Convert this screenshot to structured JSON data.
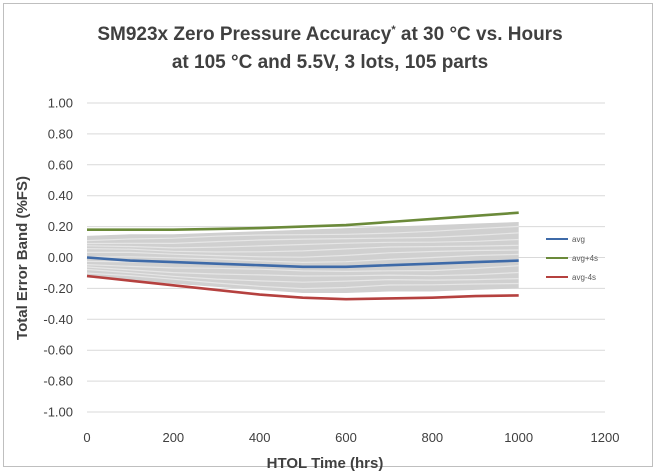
{
  "chart_data": {
    "type": "line",
    "title_line1": "SM923x Zero Pressure Accuracy",
    "title_sup": "*",
    "title_line1_rest": " at 30 °C vs. Hours",
    "title_line2": "at 105 °C and 5.5V, 3 lots, 105 parts",
    "xlabel": "HTOL Time (hrs)",
    "ylabel": "Total Error Band (%FS)",
    "xlim": [
      0,
      1200
    ],
    "ylim": [
      -1.0,
      1.0
    ],
    "x_ticks": [
      "0",
      "200",
      "400",
      "600",
      "800",
      "1000",
      "1200"
    ],
    "y_ticks": [
      "1.00",
      "0.80",
      "0.60",
      "0.40",
      "0.20",
      "0.00",
      "-0.20",
      "-0.40",
      "-0.60",
      "-0.80",
      "-1.00"
    ],
    "grid": true,
    "legend_position": "right",
    "band": {
      "x": [
        0,
        100,
        200,
        300,
        400,
        500,
        600,
        700,
        800,
        900,
        1000
      ],
      "upper": [
        0.14,
        0.15,
        0.15,
        0.16,
        0.17,
        0.18,
        0.19,
        0.2,
        0.21,
        0.22,
        0.23
      ],
      "lower": [
        -0.13,
        -0.15,
        -0.17,
        -0.19,
        -0.21,
        -0.23,
        -0.23,
        -0.22,
        -0.22,
        -0.21,
        -0.2
      ],
      "color": "#d0d0d0"
    },
    "series": [
      {
        "name": "avg",
        "color": "#3e6aa8",
        "x": [
          0,
          100,
          200,
          300,
          400,
          500,
          600,
          700,
          800,
          900,
          1000
        ],
        "y": [
          0.0,
          -0.02,
          -0.03,
          -0.04,
          -0.05,
          -0.06,
          -0.06,
          -0.05,
          -0.04,
          -0.03,
          -0.02
        ]
      },
      {
        "name": "avg+4s",
        "color": "#6b8a3a",
        "x": [
          0,
          100,
          200,
          300,
          400,
          500,
          600,
          700,
          800,
          900,
          1000
        ],
        "y": [
          0.18,
          0.18,
          0.18,
          0.185,
          0.19,
          0.2,
          0.21,
          0.23,
          0.25,
          0.27,
          0.29
        ]
      },
      {
        "name": "avg-4s",
        "color": "#b5413f",
        "x": [
          0,
          100,
          200,
          300,
          400,
          500,
          600,
          700,
          800,
          900,
          1000
        ],
        "y": [
          -0.12,
          -0.15,
          -0.18,
          -0.21,
          -0.24,
          -0.26,
          -0.27,
          -0.265,
          -0.26,
          -0.25,
          -0.245
        ]
      }
    ]
  }
}
